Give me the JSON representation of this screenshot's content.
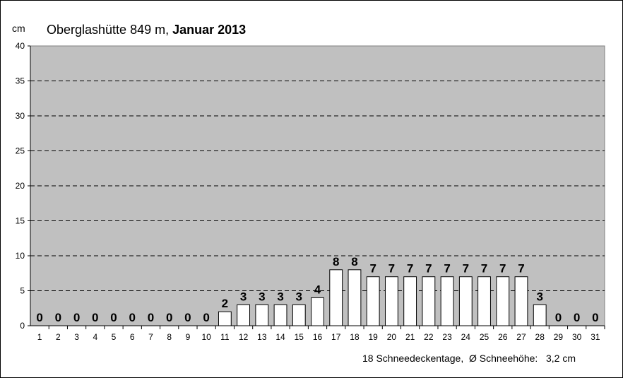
{
  "chart_data": {
    "type": "bar",
    "title_prefix": "Oberglashütte 849 m, ",
    "title_bold": "Januar 2013",
    "ylabel": "cm",
    "xlabel": "",
    "ylim": [
      0,
      40
    ],
    "yticks": [
      0,
      5,
      10,
      15,
      20,
      25,
      30,
      35,
      40
    ],
    "grid": true,
    "categories": [
      "1",
      "2",
      "3",
      "4",
      "5",
      "6",
      "7",
      "8",
      "9",
      "10",
      "11",
      "12",
      "13",
      "14",
      "15",
      "16",
      "17",
      "18",
      "19",
      "20",
      "21",
      "22",
      "23",
      "24",
      "25",
      "26",
      "27",
      "28",
      "29",
      "30",
      "31"
    ],
    "values": [
      0,
      0,
      0,
      0,
      0,
      0,
      0,
      0,
      0,
      0,
      2,
      3,
      3,
      3,
      3,
      4,
      8,
      8,
      7,
      7,
      7,
      7,
      7,
      7,
      7,
      7,
      7,
      3,
      0,
      0,
      0
    ],
    "colors": {
      "plot_bg": "#c0c0c0",
      "bar_fill": "#ffffff",
      "bar_stroke": "#000000"
    },
    "footnote": "18 Schneedeckentage,  Ø Schneehöhe:   3,2 cm"
  }
}
